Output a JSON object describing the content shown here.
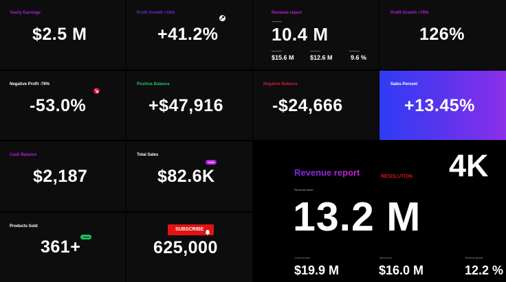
{
  "tiles": {
    "yearly_earnings": {
      "label": "Yearly Earnings",
      "value": "$2.5 M",
      "label_color": "#b51fe0"
    },
    "profit_growth_a": {
      "label": "Profit Growth +16%",
      "value": "+41.2%",
      "label_color": "#6a28d9"
    },
    "revenue_report_small": {
      "label": "Revenue report",
      "value": "10.4 M",
      "label_color": "#b51fe0",
      "sub_values": [
        "$15.6 M",
        "$12.6 M",
        "9.6 %"
      ]
    },
    "profit_growth_b": {
      "label": "Profit Growth +76%",
      "value": "126%",
      "label_color": "#b51fe0"
    },
    "negative_profit": {
      "label": "Negative Profit -76%",
      "value": "-53.0%",
      "label_color": "#ffffff"
    },
    "positive_balance": {
      "label": "Positive Balance",
      "value": "+$47,916",
      "label_color": "#1fc466"
    },
    "negative_balance": {
      "label": "Negative Balance",
      "value": "-$24,666",
      "label_color": "#d11c3e"
    },
    "sales_percent": {
      "label": "Sales Percent",
      "value": "+13.45%",
      "label_color": "#ffffff"
    },
    "cash_balance": {
      "label": "Cash Balance",
      "value": "$2,187",
      "label_color": "#b51fe0"
    },
    "total_sales": {
      "label": "Total Sales",
      "value": "$82.6K",
      "badge": "+15%",
      "label_color": "#ffffff"
    },
    "products_sold": {
      "label": "Products Sold",
      "value": "361+",
      "badge": "+16%",
      "label_color": "#ffffff"
    },
    "subscribe": {
      "button_label": "SUBSCRIBE",
      "value": "625,000"
    }
  },
  "promo": {
    "title": "Revenue report",
    "badge": "4K",
    "resolution_label": "RESOLUTION",
    "inner_label": "Revenue report",
    "value": "13.2 M",
    "stats": [
      {
        "label": "Gross income",
        "value": "$19.9 M"
      },
      {
        "label": "Net income",
        "value": "$16.0 M"
      },
      {
        "label": "Revenue growth",
        "value": "12.2 %"
      }
    ]
  },
  "colors": {
    "purple": "#b51fe0",
    "violet": "#6a28d9",
    "green": "#1fc466",
    "red": "#d11c3e",
    "subscribe_red": "#e01414",
    "gradient_start": "#2f3cf5",
    "gradient_end": "#8b2fe8"
  }
}
